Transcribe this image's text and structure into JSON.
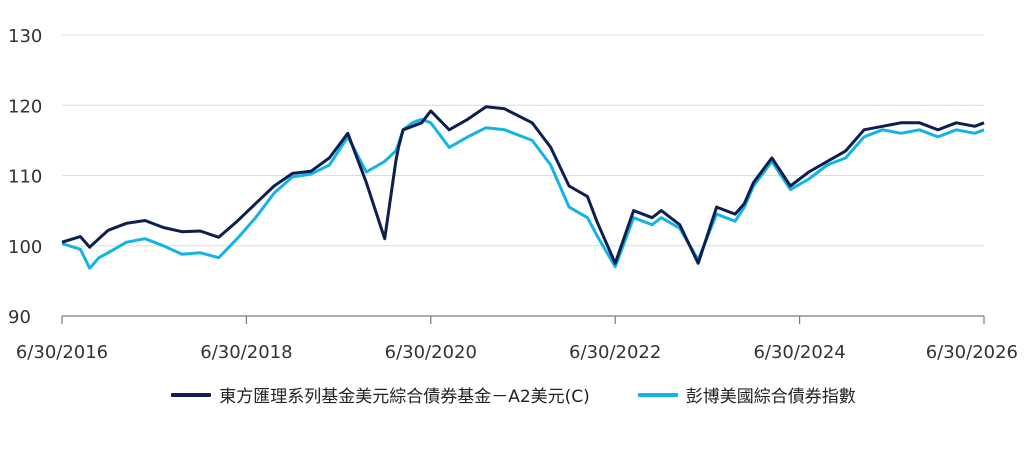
{
  "chart_data": {
    "type": "line",
    "title": "",
    "xlabel": "",
    "ylabel": "",
    "ylim": [
      90,
      130
    ],
    "yticks": [
      90,
      100,
      110,
      120,
      130
    ],
    "x_tick_labels": [
      "6/30/2016",
      "6/30/2018",
      "6/30/2020",
      "6/30/2022",
      "6/30/2024",
      "6/30/2026"
    ],
    "x_tick_values": [
      2016.5,
      2018.5,
      2020.5,
      2022.5,
      2024.5,
      2026.5
    ],
    "xlim": [
      2016.5,
      2026.5
    ],
    "grid": "horizontal",
    "legend_position": "bottom",
    "series": [
      {
        "name": "東方匯理系列基金美元綜合債券基金－A2美元(C)",
        "color": "#0c1f4f",
        "x": [
          2016.5,
          2016.7,
          2016.8,
          2016.9,
          2017.0,
          2017.2,
          2017.4,
          2017.6,
          2017.8,
          2018.0,
          2018.2,
          2018.4,
          2018.6,
          2018.8,
          2019.0,
          2019.2,
          2019.4,
          2019.6,
          2019.8,
          2020.0,
          2020.12,
          2020.15,
          2020.2,
          2020.3,
          2020.4,
          2020.5,
          2020.7,
          2020.9,
          2021.1,
          2021.3,
          2021.6,
          2021.8,
          2022.0,
          2022.2,
          2022.3,
          2022.5,
          2022.7,
          2022.9,
          2023.0,
          2023.2,
          2023.4,
          2023.6,
          2023.8,
          2023.9,
          2024.0,
          2024.2,
          2024.4,
          2024.6,
          2024.8,
          2025.0,
          2025.2,
          2025.4,
          2025.6,
          2025.8,
          2026.0,
          2026.2,
          2026.4,
          2026.5
        ],
        "values": [
          100.5,
          101.3,
          99.8,
          101.0,
          102.2,
          103.2,
          103.6,
          102.6,
          102.0,
          102.1,
          101.2,
          103.5,
          106.0,
          108.5,
          110.3,
          110.6,
          112.5,
          116.0,
          109.0,
          101.0,
          112.0,
          114.0,
          116.5,
          117.0,
          117.5,
          119.2,
          116.5,
          118.0,
          119.8,
          119.5,
          117.5,
          114.0,
          108.5,
          107.0,
          103.5,
          97.5,
          105.0,
          104.0,
          105.0,
          103.0,
          97.5,
          105.5,
          104.5,
          106.0,
          109.0,
          112.5,
          108.5,
          110.5,
          112.0,
          113.5,
          116.5,
          117.0,
          117.5,
          117.5,
          116.5,
          117.5,
          117.0,
          117.5
        ]
      },
      {
        "name": "彭博美國綜合債券指數",
        "color": "#14b3e6",
        "x": [
          2016.5,
          2016.7,
          2016.8,
          2016.9,
          2017.0,
          2017.2,
          2017.4,
          2017.6,
          2017.8,
          2018.0,
          2018.2,
          2018.4,
          2018.6,
          2018.8,
          2019.0,
          2019.2,
          2019.4,
          2019.6,
          2019.8,
          2020.0,
          2020.12,
          2020.15,
          2020.2,
          2020.3,
          2020.4,
          2020.5,
          2020.7,
          2020.9,
          2021.1,
          2021.3,
          2021.6,
          2021.8,
          2022.0,
          2022.2,
          2022.3,
          2022.5,
          2022.7,
          2022.9,
          2023.0,
          2023.2,
          2023.4,
          2023.6,
          2023.8,
          2023.9,
          2024.0,
          2024.2,
          2024.4,
          2024.6,
          2024.8,
          2025.0,
          2025.2,
          2025.4,
          2025.6,
          2025.8,
          2026.0,
          2026.2,
          2026.4,
          2026.5
        ],
        "values": [
          100.3,
          99.5,
          96.8,
          98.3,
          99.0,
          100.5,
          101.0,
          100.0,
          98.8,
          99.0,
          98.3,
          101.0,
          104.0,
          107.5,
          109.8,
          110.2,
          111.5,
          115.5,
          110.5,
          112.0,
          113.5,
          114.5,
          116.5,
          117.5,
          118.0,
          117.5,
          114.0,
          115.5,
          116.8,
          116.5,
          115.0,
          111.5,
          105.5,
          104.0,
          101.5,
          97.0,
          104.0,
          103.0,
          104.0,
          102.5,
          98.0,
          104.5,
          103.5,
          105.5,
          108.5,
          112.0,
          108.0,
          109.5,
          111.5,
          112.5,
          115.5,
          116.5,
          116.0,
          116.5,
          115.5,
          116.5,
          116.0,
          116.5
        ]
      }
    ]
  }
}
